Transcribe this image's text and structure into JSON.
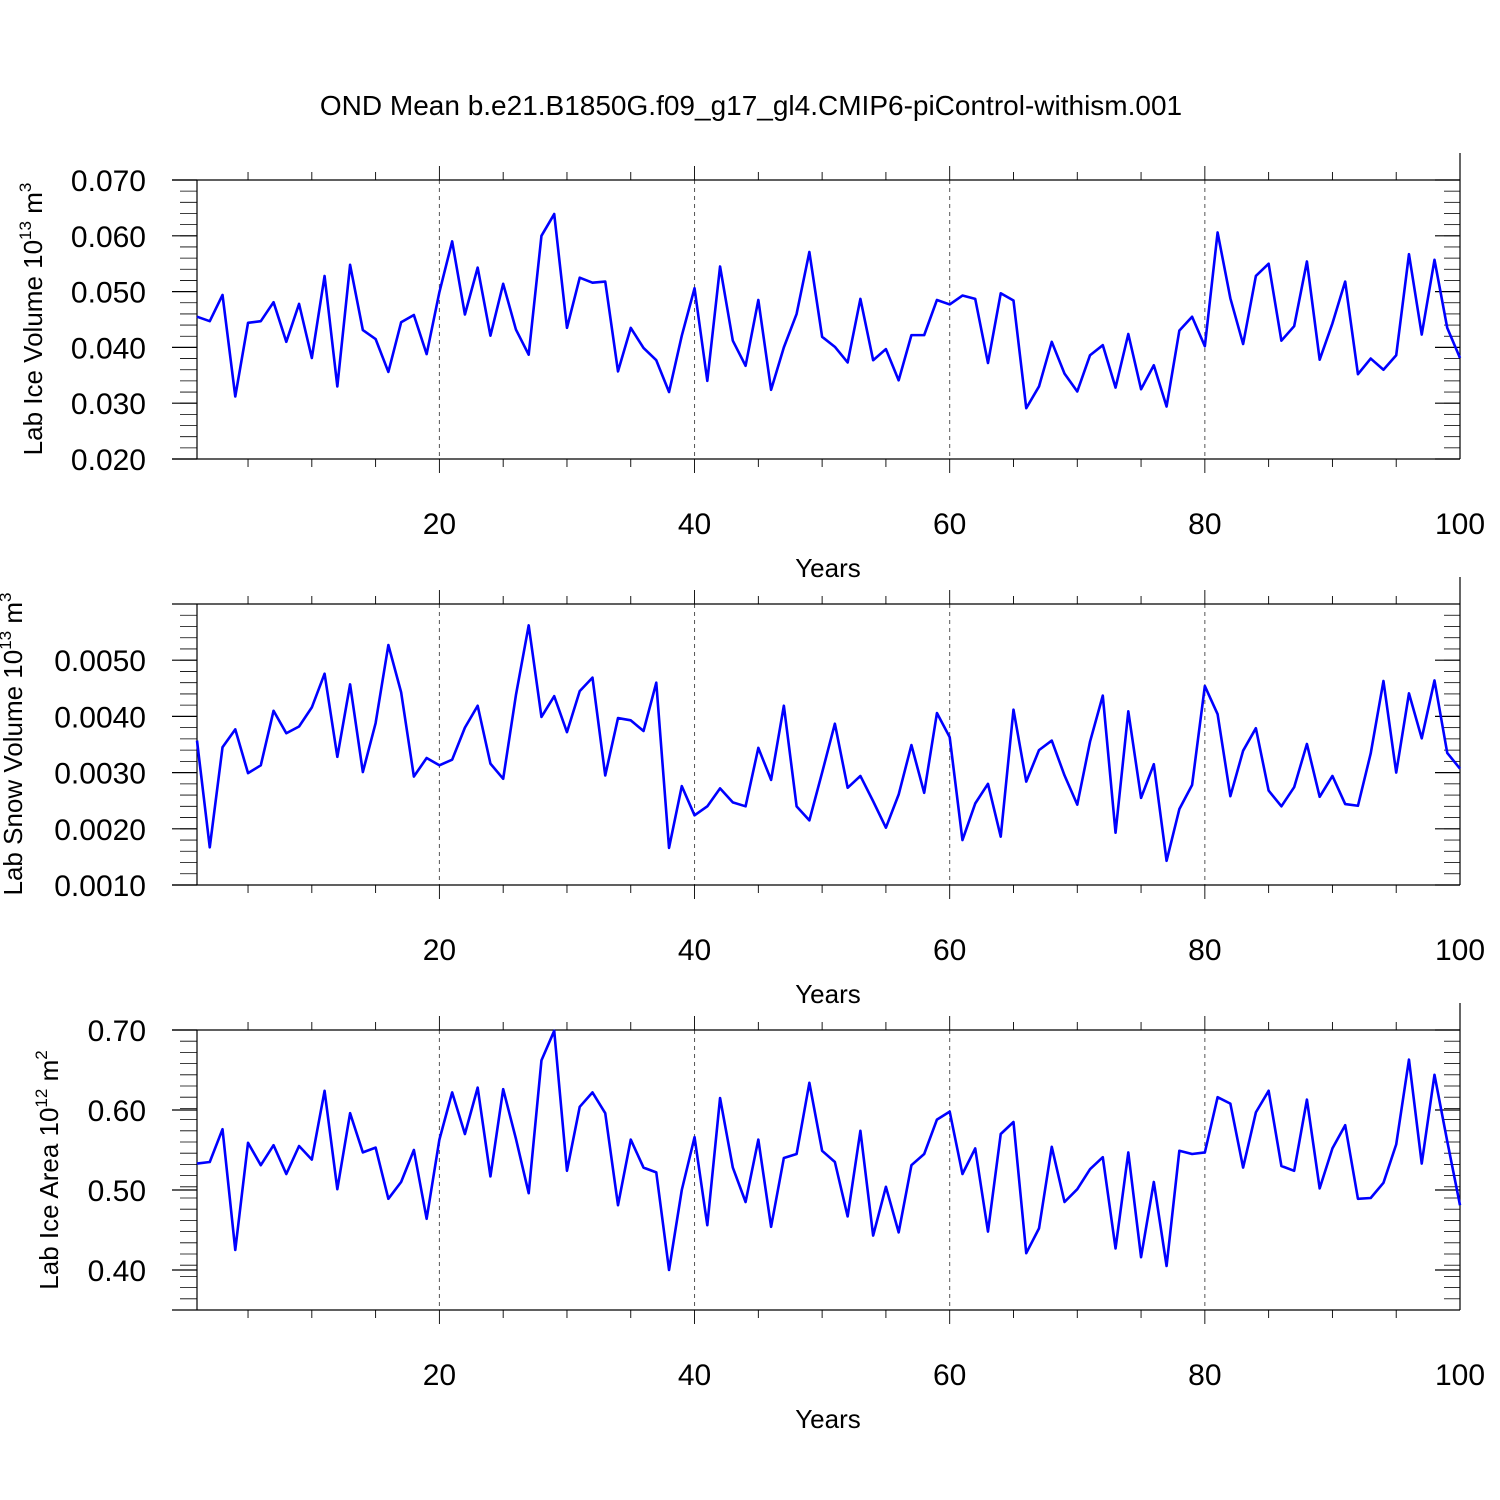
{
  "figure_title": "OND Mean b.e21.B1850G.f09_g17_gl4.CMIP6-piControl-withism.001",
  "colors": {
    "line": "#0000ff",
    "axis": "#000000",
    "grid": "#555555"
  },
  "chart_data": [
    {
      "type": "line",
      "title": "OND Mean b.e21.B1850G.f09_g17_gl4.CMIP6-piControl-withism.001",
      "xlabel": "Years",
      "ylabel": {
        "text": "Lab Ice Volume 10",
        "exponent": "13",
        "unit": "m",
        "unit_exponent": "3"
      },
      "xlim": [
        1,
        100
      ],
      "ylim": [
        0.02,
        0.07
      ],
      "x_ticks": [
        20,
        40,
        60,
        80,
        100
      ],
      "y_ticks": [
        0.02,
        0.03,
        0.04,
        0.05,
        0.06,
        0.07
      ],
      "y_tick_labels": [
        "0.020",
        "0.030",
        "0.040",
        "0.050",
        "0.060",
        "0.070"
      ],
      "grid": "vertical dashed at major x ticks",
      "series": [
        {
          "name": "Lab Ice Volume",
          "x_start": 1,
          "x_step": 1,
          "values": [
            0.0455,
            0.0447,
            0.0494,
            0.0312,
            0.0444,
            0.0447,
            0.0481,
            0.041,
            0.0478,
            0.0381,
            0.0528,
            0.033,
            0.0548,
            0.0431,
            0.0415,
            0.0356,
            0.0445,
            0.0458,
            0.0388,
            0.0499,
            0.059,
            0.0459,
            0.0543,
            0.0421,
            0.0514,
            0.0432,
            0.0387,
            0.06,
            0.0639,
            0.0435,
            0.0525,
            0.0516,
            0.0518,
            0.0357,
            0.0435,
            0.0399,
            0.0377,
            0.032,
            0.0421,
            0.0506,
            0.034,
            0.0545,
            0.0412,
            0.0367,
            0.0485,
            0.0324,
            0.04,
            0.046,
            0.0571,
            0.0419,
            0.0401,
            0.0373,
            0.0487,
            0.0377,
            0.0397,
            0.0341,
            0.0422,
            0.0422,
            0.0485,
            0.0477,
            0.0493,
            0.0487,
            0.0372,
            0.0497,
            0.0484,
            0.0291,
            0.033,
            0.041,
            0.0353,
            0.0321,
            0.0386,
            0.0404,
            0.0328,
            0.0424,
            0.0325,
            0.0368,
            0.0294,
            0.043,
            0.0455,
            0.0402,
            0.0606,
            0.0488,
            0.0406,
            0.0528,
            0.055,
            0.0412,
            0.0438,
            0.0554,
            0.0378,
            0.0443,
            0.0518,
            0.0352,
            0.038,
            0.036,
            0.0386,
            0.0567,
            0.0423,
            0.0557,
            0.0435,
            0.0381
          ]
        }
      ]
    },
    {
      "type": "line",
      "xlabel": "Years",
      "ylabel": {
        "text": "Lab Snow Volume 10",
        "exponent": "13",
        "unit": "m",
        "unit_exponent": "3"
      },
      "xlim": [
        1,
        100
      ],
      "ylim": [
        0.001,
        0.006
      ],
      "x_ticks": [
        20,
        40,
        60,
        80,
        100
      ],
      "y_ticks": [
        0.001,
        0.002,
        0.003,
        0.004,
        0.005
      ],
      "y_tick_labels": [
        "0.0010",
        "0.0020",
        "0.0030",
        "0.0040",
        "0.0050"
      ],
      "grid": "vertical dashed at major x ticks",
      "series": [
        {
          "name": "Lab Snow Volume",
          "x_start": 1,
          "x_step": 1,
          "values": [
            0.00357,
            0.00167,
            0.00345,
            0.00377,
            0.00299,
            0.00313,
            0.0041,
            0.0037,
            0.00382,
            0.00416,
            0.00476,
            0.00328,
            0.00457,
            0.00301,
            0.00388,
            0.00527,
            0.00443,
            0.00293,
            0.00326,
            0.00313,
            0.00323,
            0.0038,
            0.00419,
            0.00316,
            0.00289,
            0.00438,
            0.00562,
            0.00399,
            0.00436,
            0.00372,
            0.00445,
            0.00469,
            0.00295,
            0.00397,
            0.00393,
            0.00374,
            0.0046,
            0.00166,
            0.00276,
            0.00224,
            0.0024,
            0.00272,
            0.00247,
            0.0024,
            0.00344,
            0.00287,
            0.00419,
            0.0024,
            0.00215,
            0.003,
            0.00387,
            0.00273,
            0.00294,
            0.00249,
            0.00202,
            0.00261,
            0.00349,
            0.00264,
            0.00406,
            0.00363,
            0.0018,
            0.00245,
            0.0028,
            0.00186,
            0.00412,
            0.00284,
            0.0034,
            0.00357,
            0.00295,
            0.00243,
            0.00355,
            0.00437,
            0.00193,
            0.00409,
            0.00255,
            0.00315,
            0.00143,
            0.00235,
            0.00278,
            0.00454,
            0.00404,
            0.00258,
            0.00339,
            0.00379,
            0.00268,
            0.0024,
            0.00274,
            0.00351,
            0.00257,
            0.00294,
            0.00244,
            0.00241,
            0.00334,
            0.00463,
            0.003,
            0.00441,
            0.00361,
            0.00464,
            0.00335,
            0.00307
          ]
        }
      ]
    },
    {
      "type": "line",
      "xlabel": "Years",
      "ylabel": {
        "text": "Lab Ice Area 10",
        "exponent": "12",
        "unit": "m",
        "unit_exponent": "2"
      },
      "xlim": [
        1,
        100
      ],
      "ylim": [
        0.35,
        0.7
      ],
      "x_ticks": [
        20,
        40,
        60,
        80,
        100
      ],
      "y_ticks": [
        0.4,
        0.5,
        0.6,
        0.7
      ],
      "y_tick_labels": [
        "0.40",
        "0.50",
        "0.60",
        "0.70"
      ],
      "grid": "vertical dashed at major x ticks",
      "series": [
        {
          "name": "Lab Ice Area",
          "x_start": 1,
          "x_step": 1,
          "values": [
            0.533,
            0.535,
            0.576,
            0.425,
            0.559,
            0.531,
            0.556,
            0.52,
            0.555,
            0.538,
            0.624,
            0.501,
            0.596,
            0.547,
            0.553,
            0.489,
            0.51,
            0.55,
            0.464,
            0.563,
            0.622,
            0.57,
            0.628,
            0.517,
            0.626,
            0.564,
            0.496,
            0.662,
            0.699,
            0.524,
            0.604,
            0.622,
            0.596,
            0.481,
            0.563,
            0.528,
            0.522,
            0.4,
            0.5,
            0.566,
            0.456,
            0.615,
            0.528,
            0.485,
            0.563,
            0.454,
            0.54,
            0.545,
            0.634,
            0.549,
            0.535,
            0.467,
            0.574,
            0.443,
            0.504,
            0.447,
            0.531,
            0.545,
            0.588,
            0.598,
            0.52,
            0.552,
            0.448,
            0.57,
            0.585,
            0.421,
            0.452,
            0.554,
            0.485,
            0.501,
            0.526,
            0.541,
            0.427,
            0.547,
            0.416,
            0.51,
            0.405,
            0.549,
            0.545,
            0.547,
            0.616,
            0.608,
            0.528,
            0.597,
            0.624,
            0.53,
            0.524,
            0.613,
            0.502,
            0.552,
            0.581,
            0.489,
            0.49,
            0.509,
            0.557,
            0.663,
            0.533,
            0.644,
            0.561,
            0.481
          ]
        }
      ]
    }
  ]
}
